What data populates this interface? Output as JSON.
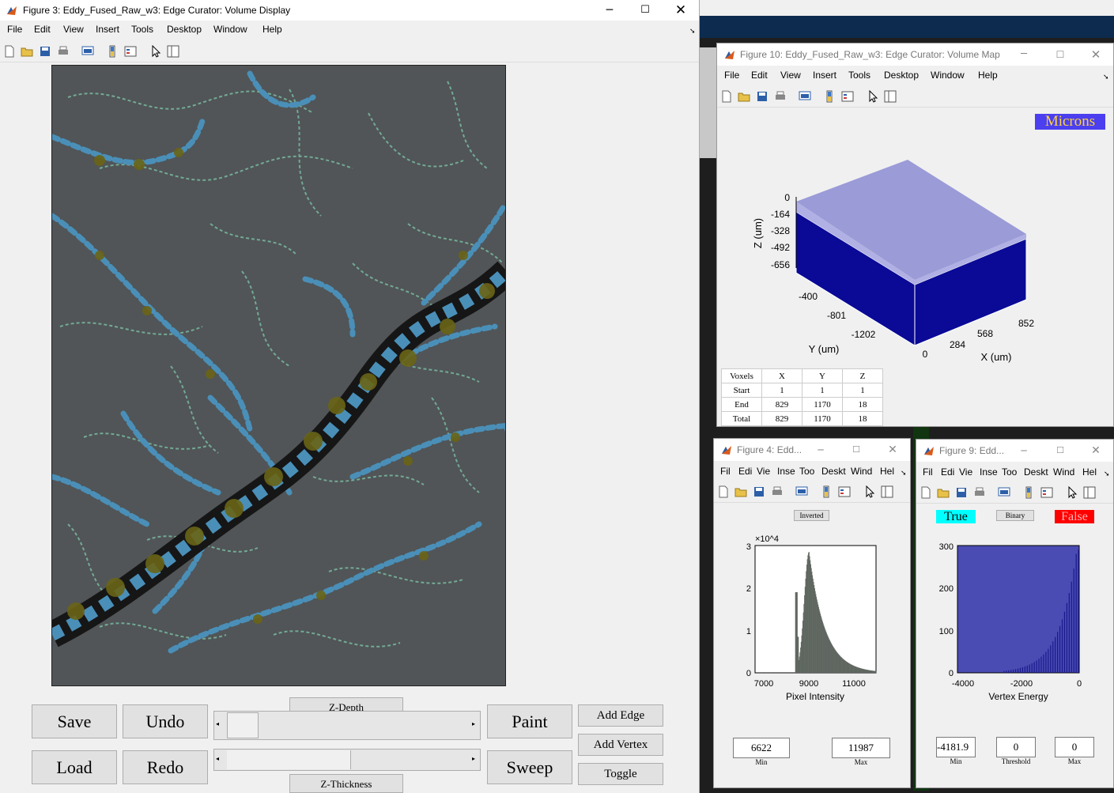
{
  "menu": [
    "File",
    "Edit",
    "View",
    "Insert",
    "Tools",
    "Desktop",
    "Window",
    "Help"
  ],
  "menu_short": [
    "Fil",
    "Edi",
    "Vie",
    "Inse",
    "Too",
    "Deskt",
    "Wind",
    "Hel"
  ],
  "fig3": {
    "title": "Figure 3: Eddy_Fused_Raw_w3: Edge Curator: Volume Display",
    "buttons": {
      "save": "Save",
      "undo": "Undo",
      "load": "Load",
      "redo": "Redo",
      "paint": "Paint",
      "sweep": "Sweep",
      "add_edge": "Add Edge",
      "add_vertex": "Add Vertex",
      "toggle": "Toggle"
    },
    "z_depth": "Z-Depth",
    "z_thickness": "Z-Thickness"
  },
  "fig10": {
    "title": "Figure 10: Eddy_Fused_Raw_w3: Edge Curator: Volume Map",
    "units_badge": "Microns",
    "chart_data": {
      "type": "3d-box",
      "z_label": "Z (um)",
      "y_label": "Y (um)",
      "x_label": "X (um)",
      "z_ticks": [
        "0",
        "-164",
        "-328",
        "-492",
        "-656"
      ],
      "y_ticks": [
        "-400",
        "-801",
        "-1202"
      ],
      "x_ticks": [
        "0",
        "284",
        "568",
        "852"
      ],
      "colors": {
        "top": "#9b9bd8",
        "sides": "#0a0a96"
      }
    },
    "table": {
      "header": [
        "Voxels",
        "X",
        "Y",
        "Z"
      ],
      "rows": [
        [
          "Start",
          "1",
          "1",
          "1"
        ],
        [
          "End",
          "829",
          "1170",
          "18"
        ],
        [
          "Total",
          "829",
          "1170",
          "18"
        ]
      ]
    }
  },
  "fig4": {
    "title": "Figure 4: Edd...",
    "inverted_label": "Inverted",
    "chart_data": {
      "type": "histogram",
      "xlabel": "Pixel Intensity",
      "x_ticks": [
        "7000",
        "9000",
        "11000"
      ],
      "y_ticks": [
        "0",
        "1",
        "2",
        "3"
      ],
      "y_multiplier": "×10^4",
      "xlim": [
        6622,
        11987
      ],
      "ylim": [
        0,
        30000
      ],
      "peak_x": 9000,
      "bar_color": "#5f6660"
    },
    "min_value": "6622",
    "max_value": "11987",
    "min_caption": "Min",
    "max_caption": "Max"
  },
  "fig9": {
    "title": "Figure 9: Edd...",
    "true_label": "True",
    "binary_label": "Binary",
    "false_label": "False",
    "chart_data": {
      "type": "histogram",
      "xlabel": "Vertex Energy",
      "x_ticks": [
        "-4000",
        "-2000",
        "0"
      ],
      "y_ticks": [
        "0",
        "100",
        "200",
        "300"
      ],
      "xlim": [
        -4181.9,
        0
      ],
      "ylim": [
        0,
        300
      ],
      "bg_color": "#4b4bb4",
      "bar_color": "#1a1a8c"
    },
    "min_value": "-4181.9",
    "threshold_value": "0",
    "max_value": "0",
    "min_caption": "Min",
    "threshold_caption": "Threshold",
    "max_caption": "Max"
  }
}
